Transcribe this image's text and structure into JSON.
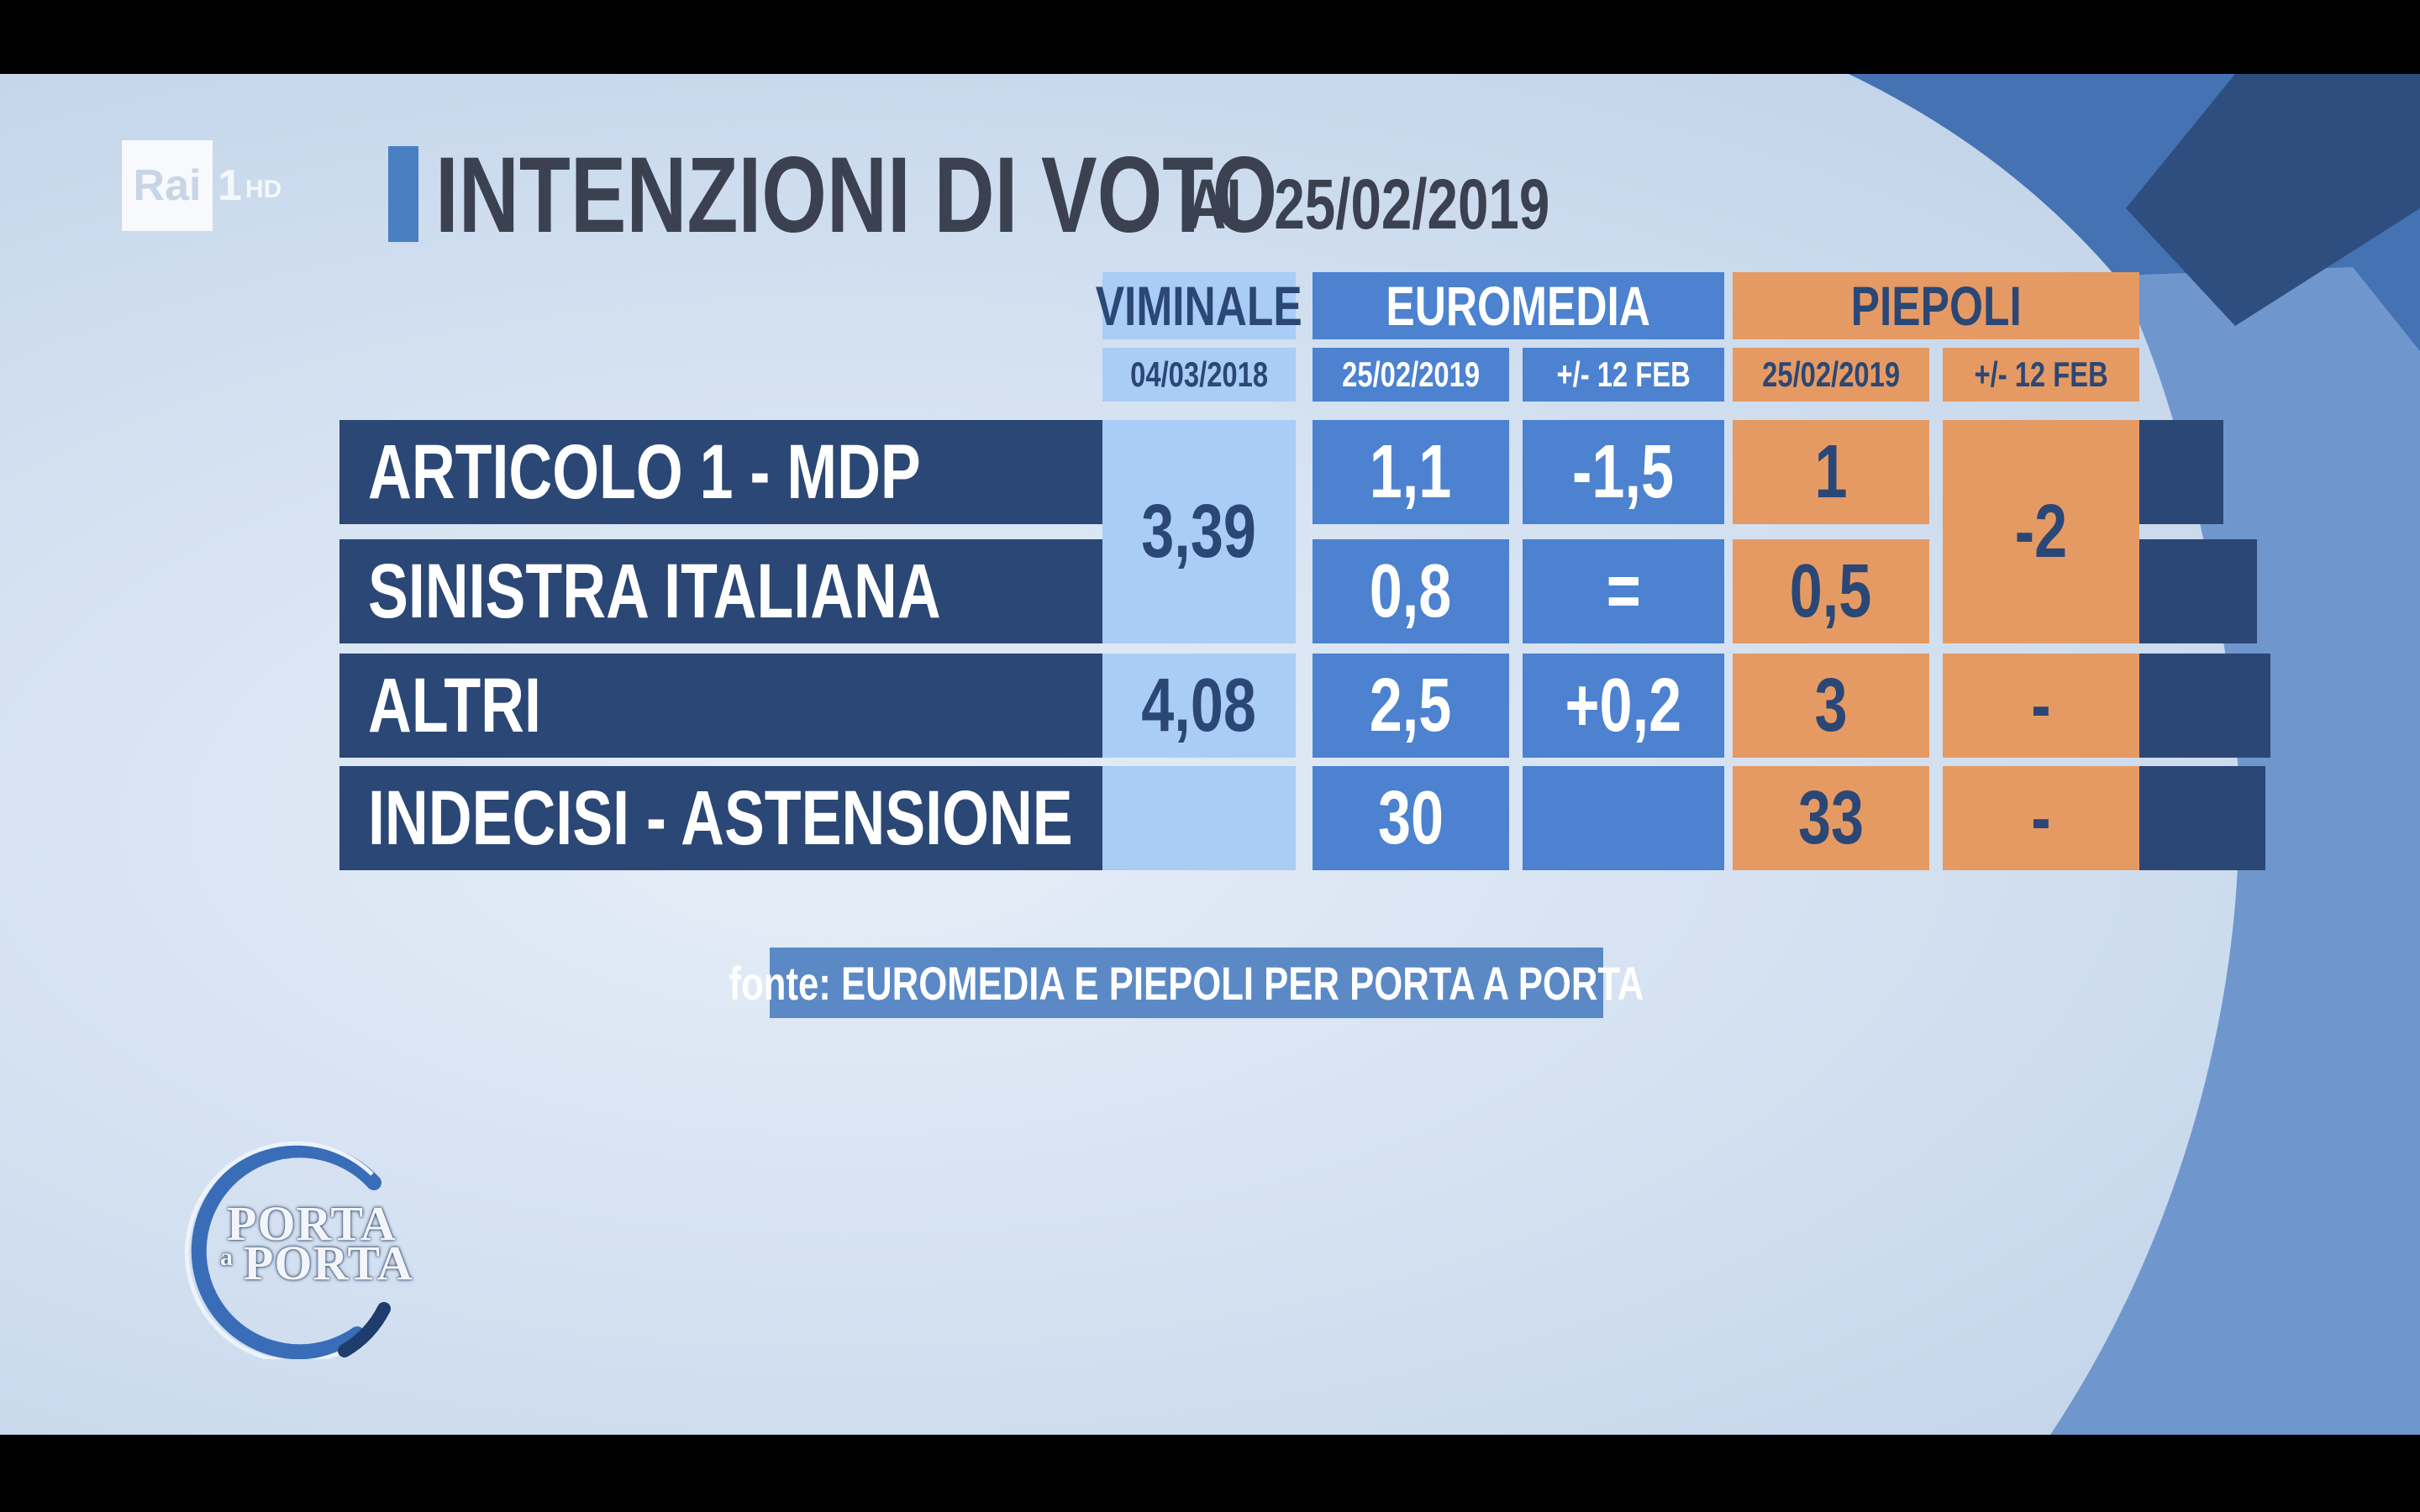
{
  "channel": {
    "logo_text": "Rai",
    "channel_number": "1",
    "quality": "HD"
  },
  "title": {
    "main": "INTENZIONI DI VOTO",
    "sub": "AL 25/02/2019"
  },
  "table": {
    "groups": {
      "viminale": {
        "name": "VIMINALE",
        "date": "04/03/2018"
      },
      "euromedia": {
        "name": "EUROMEDIA",
        "date": "25/02/2019",
        "delta": "+/- 12 FEB"
      },
      "piepoli": {
        "name": "PIEPOLI",
        "date": "25/02/2019",
        "delta": "+/- 12 FEB"
      }
    },
    "rows": [
      {
        "label": "ARTICOLO 1 - MDP",
        "euromedia": "1,1",
        "euromedia_delta": "-1,5",
        "piepoli": "1"
      },
      {
        "label": "SINISTRA ITALIANA",
        "euromedia": "0,8",
        "euromedia_delta": "=",
        "piepoli": "0,5"
      },
      {
        "label": "ALTRI",
        "viminale": "4,08",
        "euromedia": "2,5",
        "euromedia_delta": "+0,2",
        "piepoli": "3",
        "piepoli_delta": "-"
      },
      {
        "label": "INDECISI - ASTENSIONE",
        "viminale": "",
        "euromedia": "30",
        "euromedia_delta": "",
        "piepoli": "33",
        "piepoli_delta": "-"
      }
    ],
    "merged": {
      "viminale_rows_1_2": "3,39",
      "piepoli_delta_rows_1_2": "-2"
    }
  },
  "source": "fonte: EUROMEDIA E PIEPOLI PER PORTA A PORTA",
  "show_logo": {
    "line1": "PORTA",
    "connector": "a",
    "line2": "PORTA"
  },
  "colors": {
    "background": "#d4e1f1",
    "row_band": "#2b4775",
    "viminale": "#a9cdf5",
    "euromedia": "#4c82cf",
    "piepoli": "#e69a63",
    "title_text": "#3b4150",
    "title_accent": "#4a7fc3"
  }
}
